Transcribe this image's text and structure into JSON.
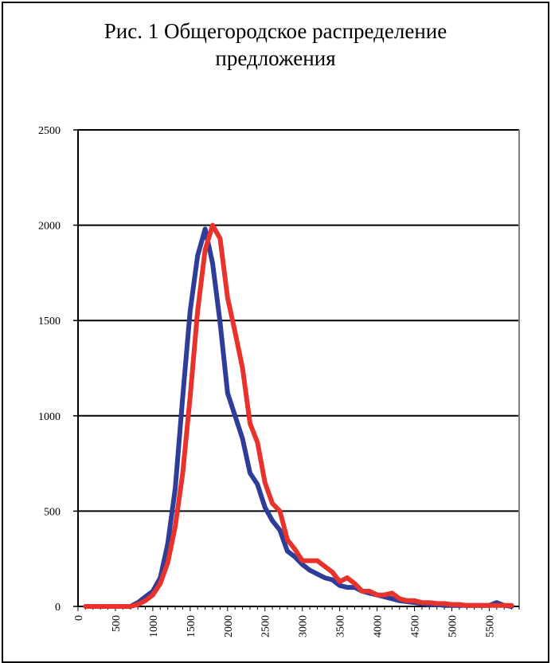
{
  "title_lines": [
    "Рис. 1 Общегородское распределение",
    "предложения"
  ],
  "chart_data": {
    "type": "line",
    "title": "Рис. 1 Общегородское распределение предложения",
    "xlabel": "",
    "ylabel": "",
    "xlim": [
      0,
      5900
    ],
    "ylim": [
      0,
      2500
    ],
    "grid": true,
    "legend": "none",
    "y_ticks": [
      0,
      500,
      1000,
      1500,
      2000,
      2500
    ],
    "x_ticks": [
      0,
      500,
      1000,
      1500,
      2000,
      2500,
      3000,
      3500,
      4000,
      4500,
      5000,
      5500
    ],
    "series": [
      {
        "color": "#2e3c9a",
        "x": [
          100,
          200,
          300,
          400,
          500,
          600,
          700,
          800,
          900,
          1000,
          1100,
          1200,
          1300,
          1400,
          1500,
          1600,
          1700,
          1800,
          1900,
          2000,
          2100,
          2200,
          2300,
          2400,
          2500,
          2600,
          2700,
          2800,
          2900,
          3000,
          3100,
          3200,
          3300,
          3400,
          3500,
          3600,
          3700,
          3800,
          3900,
          4000,
          4100,
          4200,
          4300,
          4400,
          4500,
          4600,
          4700,
          4800,
          4900,
          5000,
          5100,
          5200,
          5300,
          5400,
          5500,
          5600,
          5700,
          5800
        ],
        "values": [
          0,
          0,
          0,
          0,
          0,
          0,
          0,
          20,
          50,
          80,
          150,
          330,
          620,
          1100,
          1550,
          1840,
          1980,
          1800,
          1490,
          1120,
          1000,
          880,
          700,
          640,
          520,
          450,
          400,
          290,
          260,
          220,
          190,
          170,
          150,
          140,
          110,
          100,
          100,
          80,
          70,
          60,
          50,
          40,
          30,
          25,
          20,
          15,
          10,
          10,
          5,
          5,
          5,
          5,
          5,
          5,
          5,
          20,
          5,
          0
        ]
      },
      {
        "color": "#e8322c",
        "x": [
          100,
          200,
          300,
          400,
          500,
          600,
          700,
          800,
          900,
          1000,
          1100,
          1200,
          1300,
          1400,
          1500,
          1600,
          1700,
          1800,
          1900,
          2000,
          2100,
          2200,
          2300,
          2400,
          2500,
          2600,
          2700,
          2800,
          2900,
          3000,
          3100,
          3200,
          3300,
          3400,
          3500,
          3600,
          3700,
          3800,
          3900,
          4000,
          4100,
          4200,
          4300,
          4400,
          4500,
          4600,
          4700,
          4800,
          4900,
          5000,
          5100,
          5200,
          5300,
          5400,
          5500,
          5600,
          5700,
          5800
        ],
        "values": [
          0,
          0,
          0,
          0,
          0,
          0,
          0,
          10,
          30,
          60,
          120,
          230,
          420,
          700,
          1100,
          1550,
          1870,
          2000,
          1930,
          1620,
          1440,
          1250,
          960,
          860,
          650,
          540,
          500,
          350,
          300,
          240,
          240,
          240,
          210,
          180,
          130,
          150,
          120,
          80,
          80,
          60,
          60,
          70,
          40,
          30,
          30,
          20,
          20,
          15,
          15,
          10,
          10,
          5,
          5,
          5,
          5,
          5,
          5,
          5
        ]
      }
    ]
  }
}
